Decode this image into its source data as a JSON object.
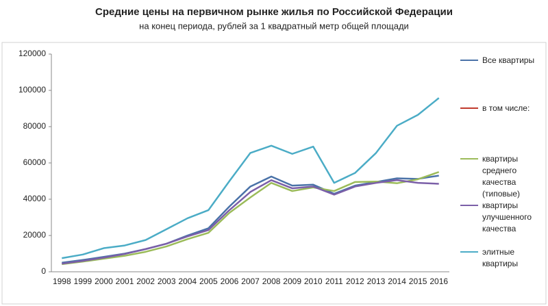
{
  "chart_data": {
    "type": "line",
    "title": "Средние цены на первичном рынке жилья по Российской Федерации",
    "subtitle": "на конец периода, рублей за 1 квадратный метр общей площади",
    "categories": [
      "1998",
      "1999",
      "2000",
      "2001",
      "2002",
      "2003",
      "2004",
      "2005",
      "2006",
      "2007",
      "2008",
      "2009",
      "2010",
      "2011",
      "2012",
      "2013",
      "2014",
      "2015",
      "2016"
    ],
    "ylim": [
      0,
      120000
    ],
    "yticks": [
      0,
      20000,
      40000,
      60000,
      80000,
      100000,
      120000
    ],
    "grid": false,
    "legend": "right",
    "series": [
      {
        "name": "Все квартиры",
        "color": "#4a72a8",
        "values": [
          5000,
          6500,
          8200,
          10000,
          12500,
          15500,
          20000,
          24000,
          36000,
          47000,
          52500,
          47500,
          48000,
          43000,
          47500,
          49500,
          51500,
          51200,
          53000
        ]
      },
      {
        "name": "в том числе:",
        "color": "#c0392b",
        "values": [
          null,
          null,
          null,
          null,
          null,
          null,
          null,
          null,
          null,
          null,
          null,
          null,
          null,
          null,
          null,
          null,
          null,
          null,
          null
        ]
      },
      {
        "name": "квартиры среднего качества (типовые)",
        "color": "#9bbb59",
        "values": [
          4200,
          5600,
          7200,
          8800,
          11000,
          14000,
          18000,
          21500,
          32500,
          41000,
          49000,
          44500,
          46500,
          44500,
          49500,
          49700,
          48800,
          51000,
          55000
        ]
      },
      {
        "name": "квартиры улучшенного качества",
        "color": "#7b5fa8",
        "values": [
          4500,
          6000,
          7800,
          9800,
          12500,
          15500,
          19500,
          23000,
          34000,
          44000,
          50500,
          46000,
          47000,
          42500,
          47000,
          49000,
          50500,
          49000,
          48500
        ]
      },
      {
        "name": "элитные квартиры",
        "color": "#4bacc6",
        "values": [
          7500,
          9500,
          13000,
          14500,
          17500,
          23500,
          29500,
          34000,
          50000,
          65500,
          69500,
          65000,
          69000,
          49000,
          54500,
          65500,
          80500,
          86500,
          95800
        ]
      }
    ]
  }
}
